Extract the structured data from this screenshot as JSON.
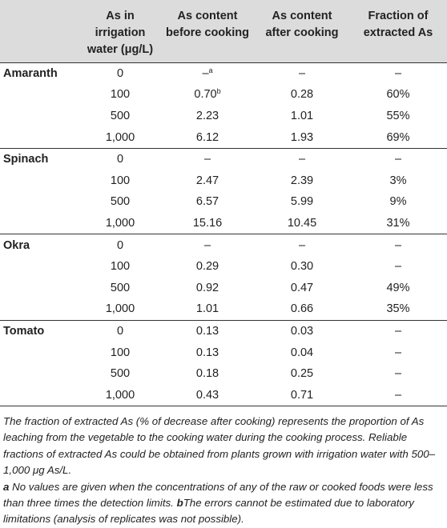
{
  "headers": [
    "",
    "As in irrigation water (μg/L)",
    "As content before cooking",
    "As content after cooking",
    "Fraction of extracted As"
  ],
  "groups": [
    {
      "name": "Amaranth",
      "rows": [
        {
          "water": "0",
          "before": "–",
          "before_sup": "a",
          "after": "–",
          "fraction": "–"
        },
        {
          "water": "100",
          "before": "0.70",
          "before_sup": "b",
          "after": "0.28",
          "fraction": "60%"
        },
        {
          "water": "500",
          "before": "2.23",
          "after": "1.01",
          "fraction": "55%"
        },
        {
          "water": "1,000",
          "before": "6.12",
          "after": "1.93",
          "fraction": "69%"
        }
      ]
    },
    {
      "name": "Spinach",
      "rows": [
        {
          "water": "0",
          "before": "–",
          "after": "–",
          "fraction": "–"
        },
        {
          "water": "100",
          "before": "2.47",
          "after": "2.39",
          "fraction": "3%"
        },
        {
          "water": "500",
          "before": "6.57",
          "after": "5.99",
          "fraction": "9%"
        },
        {
          "water": "1,000",
          "before": "15.16",
          "after": "10.45",
          "fraction": "31%"
        }
      ]
    },
    {
      "name": "Okra",
      "rows": [
        {
          "water": "0",
          "before": "–",
          "after": "–",
          "fraction": "–"
        },
        {
          "water": "100",
          "before": "0.29",
          "after": "0.30",
          "fraction": "–"
        },
        {
          "water": "500",
          "before": "0.92",
          "after": "0.47",
          "fraction": "49%"
        },
        {
          "water": "1,000",
          "before": "1.01",
          "after": "0.66",
          "fraction": "35%"
        }
      ]
    },
    {
      "name": "Tomato",
      "rows": [
        {
          "water": "0",
          "before": "0.13",
          "after": "0.03",
          "fraction": "–"
        },
        {
          "water": "100",
          "before": "0.13",
          "after": "0.04",
          "fraction": "–"
        },
        {
          "water": "500",
          "before": "0.18",
          "after": "0.25",
          "fraction": "–"
        },
        {
          "water": "1,000",
          "before": "0.43",
          "after": "0.71",
          "fraction": "–"
        }
      ]
    }
  ],
  "footnote_main": "The fraction of extracted As (% of decrease after cooking) represents the proportion of As leaching from the vegetable to the cooking water during the cooking process. Reliable fractions of extracted As could be obtained from plants grown with irrigation water with 500–1,000 μg As/L.",
  "footnote_a_marker": "a",
  "footnote_a": " No values are given when the concentrations of any of the raw or cooked foods were less than three times the detection limits. ",
  "footnote_b_marker": "b",
  "footnote_b": "The errors cannot be estimated due to laboratory limitations (analysis of replicates was not possible)."
}
